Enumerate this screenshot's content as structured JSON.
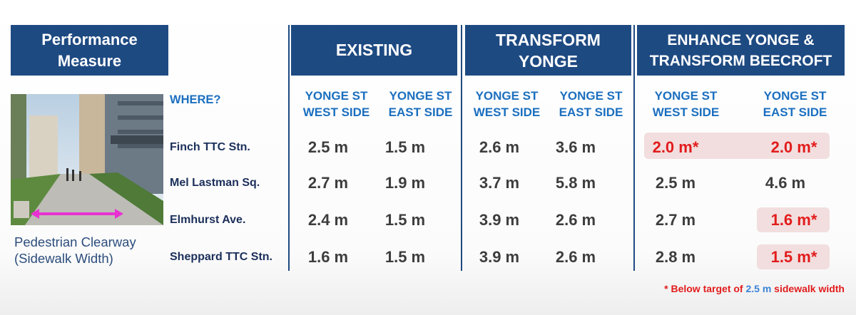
{
  "headers": {
    "performance_measure": [
      "Performance",
      "Measure"
    ],
    "existing": "EXISTING",
    "transform_yonge": [
      "TRANSFORM",
      "YONGE"
    ],
    "enhance": [
      "ENHANCE YONGE &",
      "TRANSFORM BEECROFT"
    ]
  },
  "caption": [
    "Pedestrian Clearway",
    "(Sidewalk Width)"
  ],
  "where_label": "WHERE?",
  "column_labels": [
    [
      "YONGE ST",
      "WEST SIDE"
    ],
    [
      "YONGE ST",
      "EAST SIDE"
    ],
    [
      "YONGE ST",
      "WEST SIDE"
    ],
    [
      "YONGE ST",
      "EAST SIDE"
    ],
    [
      "YONGE ST",
      "WEST SIDE"
    ],
    [
      "YONGE ST",
      "EAST SIDE"
    ]
  ],
  "rows": [
    {
      "location": "Finch TTC Stn.",
      "values": [
        "2.5 m",
        "1.5 m",
        "2.6 m",
        "3.6 m",
        "2.0 m*",
        "2.0 m*"
      ]
    },
    {
      "location": "Mel Lastman Sq.",
      "values": [
        "2.7 m",
        "1.9 m",
        "3.7 m",
        "5.8 m",
        "2.5 m",
        "4.6 m"
      ]
    },
    {
      "location": "Elmhurst Ave.",
      "values": [
        "2.4 m",
        "1.5 m",
        "3.9 m",
        "2.6 m",
        "2.7 m",
        "1.6 m*"
      ]
    },
    {
      "location": "Sheppard TTC Stn.",
      "values": [
        "1.6 m",
        "1.5 m",
        "3.9 m",
        "2.6 m",
        "2.8 m",
        "1.5 m*"
      ]
    }
  ],
  "footnote": {
    "prefix": "* Below target of ",
    "target": "2.5 m",
    "suffix": " sidewalk width"
  },
  "colors": {
    "header_blue": "#1e4a82",
    "label_blue": "#1b6fbf",
    "flag_red": "#e21c1c",
    "highlight": "#f2dede"
  }
}
